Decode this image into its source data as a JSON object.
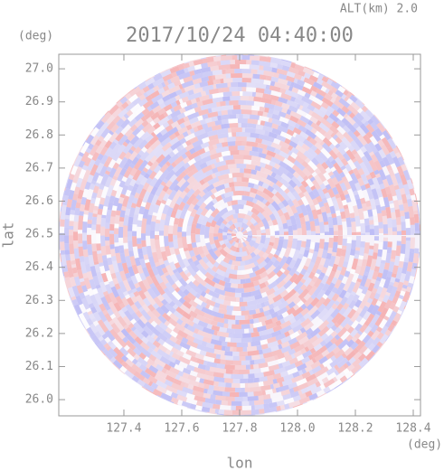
{
  "chart_data": {
    "type": "radar-ppi",
    "title": "2017/10/24 04:40:00",
    "subtitle": "ALT(km) 2.0",
    "x_label": "lon",
    "y_label": "lat",
    "x_unit": "(deg)",
    "y_unit": "(deg)",
    "xlim": [
      127.175,
      128.425
    ],
    "ylim": [
      25.951,
      27.044
    ],
    "xticks": [
      127.4,
      127.6,
      127.8,
      {
        "value": 128.0,
        "label": "128.0"
      },
      128.2,
      128.4
    ],
    "yticks": [
      {
        "value": 26.0,
        "label": "26.0"
      },
      26.1,
      26.2,
      26.3,
      26.4,
      26.5,
      26.6,
      26.7,
      26.8,
      26.9,
      {
        "value": 27.0,
        "label": "27.0"
      }
    ]
  }
}
